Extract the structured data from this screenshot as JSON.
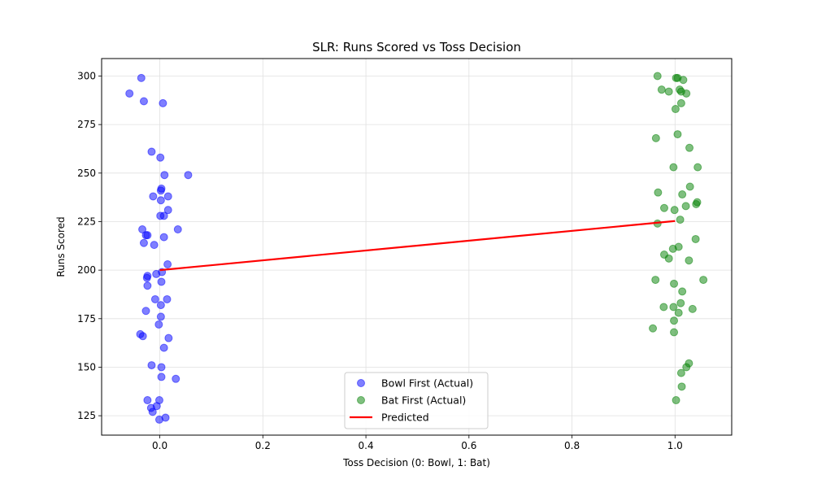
{
  "chart_data": {
    "type": "scatter",
    "title": "SLR: Runs Scored vs Toss Decision",
    "xlabel": "Toss Decision (0: Bowl, 1: Bat)",
    "ylabel": "Runs Scored",
    "xlim": [
      -0.113,
      1.11
    ],
    "ylim": [
      115,
      309
    ],
    "x_ticks": [
      0.0,
      0.2,
      0.4,
      0.6,
      0.8,
      1.0
    ],
    "x_tick_labels": [
      "0.0",
      "0.2",
      "0.4",
      "0.6",
      "0.8",
      "1.0"
    ],
    "y_ticks": [
      125,
      150,
      175,
      200,
      225,
      250,
      275,
      300
    ],
    "y_tick_labels": [
      "125",
      "150",
      "175",
      "200",
      "225",
      "250",
      "275",
      "300"
    ],
    "grid": true,
    "legend_position": "bottom-center",
    "series": [
      {
        "name": "Bowl First (Actual)",
        "kind": "scatter",
        "color": "#0000ff",
        "alpha": 0.5,
        "points": [
          [
            -0.036,
            299
          ],
          [
            -0.059,
            291
          ],
          [
            -0.031,
            287
          ],
          [
            0.006,
            286
          ],
          [
            -0.016,
            261
          ],
          [
            0.001,
            258
          ],
          [
            0.009,
            249
          ],
          [
            0.055,
            249
          ],
          [
            0.003,
            242
          ],
          [
            0.002,
            241
          ],
          [
            0.016,
            238
          ],
          [
            -0.013,
            238
          ],
          [
            0.002,
            236
          ],
          [
            0.016,
            231
          ],
          [
            0.001,
            228
          ],
          [
            0.008,
            228
          ],
          [
            -0.034,
            221
          ],
          [
            0.035,
            221
          ],
          [
            -0.027,
            218
          ],
          [
            -0.024,
            218
          ],
          [
            0.008,
            217
          ],
          [
            -0.031,
            214
          ],
          [
            -0.011,
            213
          ],
          [
            0.015,
            203
          ],
          [
            0.004,
            199
          ],
          [
            -0.007,
            198
          ],
          [
            -0.024,
            197
          ],
          [
            -0.025,
            196
          ],
          [
            0.003,
            194
          ],
          [
            -0.024,
            192
          ],
          [
            0.014,
            185
          ],
          [
            -0.009,
            185
          ],
          [
            0.002,
            182
          ],
          [
            -0.027,
            179
          ],
          [
            0.002,
            176
          ],
          [
            -0.002,
            172
          ],
          [
            -0.038,
            167
          ],
          [
            -0.033,
            166
          ],
          [
            0.017,
            165
          ],
          [
            0.008,
            160
          ],
          [
            -0.016,
            151
          ],
          [
            0.003,
            150
          ],
          [
            0.003,
            145
          ],
          [
            0.031,
            144
          ],
          [
            -0.024,
            133
          ],
          [
            -0.001,
            133
          ],
          [
            -0.006,
            130
          ],
          [
            -0.017,
            129
          ],
          [
            -0.014,
            127
          ],
          [
            0.011,
            124
          ],
          [
            -0.001,
            123
          ]
        ]
      },
      {
        "name": "Bat First (Actual)",
        "kind": "scatter",
        "color": "#008000",
        "alpha": 0.5,
        "points": [
          [
            0.966,
            300
          ],
          [
            1.002,
            299
          ],
          [
            1.005,
            299
          ],
          [
            1.016,
            298
          ],
          [
            0.974,
            293
          ],
          [
            1.009,
            293
          ],
          [
            0.988,
            292
          ],
          [
            1.012,
            292
          ],
          [
            1.022,
            291
          ],
          [
            1.012,
            286
          ],
          [
            1.001,
            283
          ],
          [
            1.005,
            270
          ],
          [
            0.963,
            268
          ],
          [
            1.028,
            263
          ],
          [
            0.997,
            253
          ],
          [
            1.044,
            253
          ],
          [
            1.029,
            243
          ],
          [
            0.967,
            240
          ],
          [
            1.014,
            239
          ],
          [
            1.043,
            235
          ],
          [
            1.041,
            234
          ],
          [
            1.021,
            233
          ],
          [
            0.979,
            232
          ],
          [
            0.999,
            231
          ],
          [
            1.01,
            226
          ],
          [
            0.966,
            224
          ],
          [
            1.04,
            216
          ],
          [
            1.007,
            212
          ],
          [
            0.996,
            211
          ],
          [
            0.979,
            208
          ],
          [
            0.988,
            206
          ],
          [
            1.027,
            205
          ],
          [
            0.962,
            195
          ],
          [
            1.055,
            195
          ],
          [
            0.998,
            193
          ],
          [
            1.014,
            189
          ],
          [
            1.011,
            183
          ],
          [
            0.997,
            181
          ],
          [
            0.978,
            181
          ],
          [
            1.034,
            180
          ],
          [
            1.007,
            178
          ],
          [
            0.998,
            174
          ],
          [
            0.957,
            170
          ],
          [
            0.998,
            168
          ],
          [
            1.027,
            152
          ],
          [
            1.022,
            150
          ],
          [
            1.012,
            147
          ],
          [
            1.013,
            140
          ],
          [
            1.002,
            133
          ]
        ]
      },
      {
        "name": "Predicted",
        "kind": "line",
        "color": "#ff0000",
        "points": [
          [
            0,
            200
          ],
          [
            1,
            225.3
          ]
        ]
      }
    ]
  }
}
